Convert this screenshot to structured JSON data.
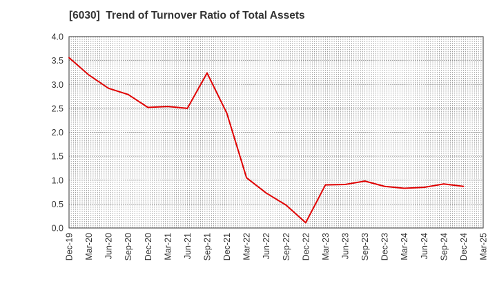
{
  "chart_data": {
    "type": "line",
    "title": "[6030]  Trend of Turnover Ratio of Total Assets",
    "xlabel": "",
    "ylabel": "",
    "ylim": [
      0,
      4.0
    ],
    "yticks": [
      "0.0",
      "0.5",
      "1.0",
      "1.5",
      "2.0",
      "2.5",
      "3.0",
      "3.5",
      "4.0"
    ],
    "grid": true,
    "legend": "none",
    "line_color": "#e00000",
    "tick_labels": [
      "Dec-19",
      "Mar-20",
      "Jun-20",
      "Sep-20",
      "Dec-20",
      "Mar-21",
      "Jun-21",
      "Sep-21",
      "Dec-21",
      "Mar-22",
      "Jun-22",
      "Sep-22",
      "Dec-22",
      "Mar-23",
      "Jun-23",
      "Sep-23",
      "Dec-23",
      "Mar-24",
      "Jun-24",
      "Sep-24",
      "Dec-24",
      "Mar-25"
    ],
    "series": [
      {
        "name": "",
        "x": [
          "Dec-19",
          "Mar-20",
          "Jun-20",
          "Sep-20",
          "Dec-20",
          "Mar-21",
          "Jun-21",
          "Sep-21",
          "Dec-21",
          "Mar-22",
          "Jun-22",
          "Sep-22",
          "Dec-22",
          "Mar-23",
          "Jun-23",
          "Sep-23",
          "Dec-23",
          "Mar-24",
          "Jun-24",
          "Sep-24",
          "Dec-24"
        ],
        "values": [
          3.56,
          3.2,
          2.92,
          2.79,
          2.52,
          2.54,
          2.5,
          3.24,
          2.4,
          1.05,
          0.73,
          0.48,
          0.11,
          0.9,
          0.91,
          0.98,
          0.87,
          0.83,
          0.85,
          0.92,
          0.87
        ]
      }
    ]
  }
}
